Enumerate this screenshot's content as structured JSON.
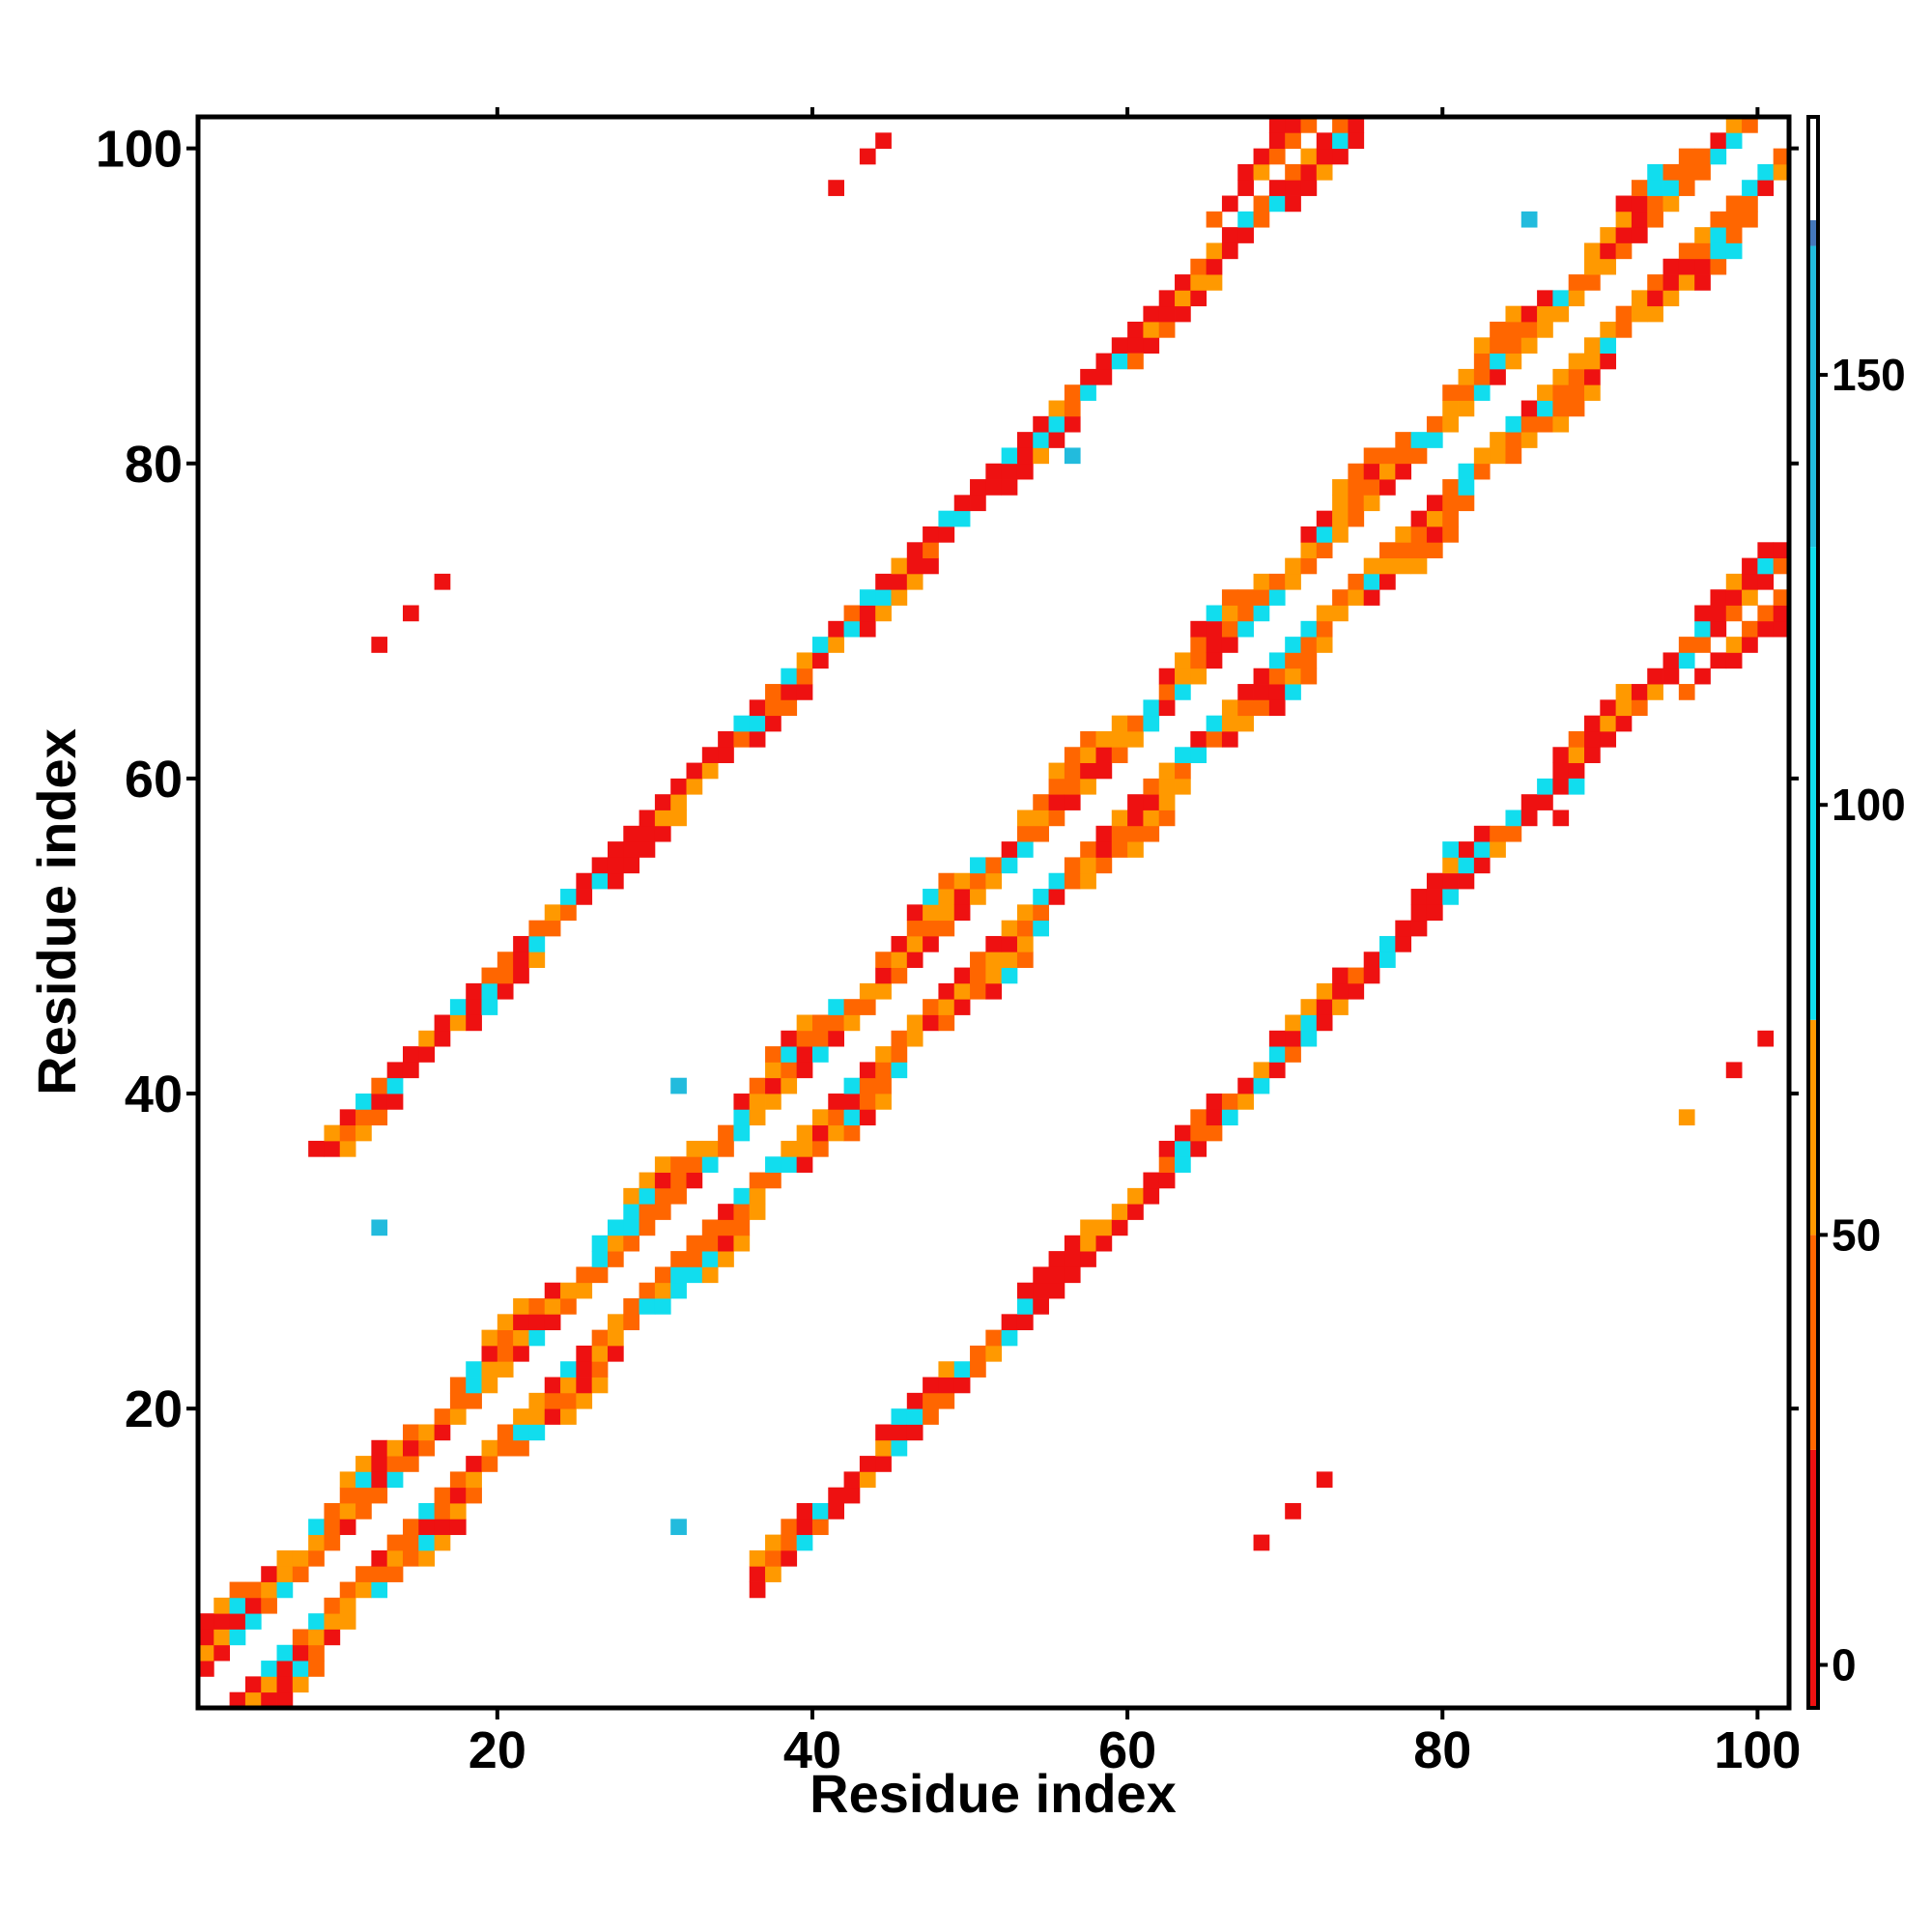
{
  "chart_data": {
    "type": "heatmap",
    "title": "",
    "xlabel": "Residue index",
    "ylabel": "Residue index",
    "xlim": [
      1,
      102
    ],
    "ylim": [
      1,
      102
    ],
    "x_ticks": [
      20,
      40,
      60,
      80,
      100
    ],
    "y_ticks": [
      20,
      40,
      60,
      80,
      100
    ],
    "symmetric": true,
    "colorbar": {
      "ticks": [
        0,
        50,
        100,
        150
      ],
      "range": [
        -5,
        180
      ],
      "bands": [
        {
          "from": -5,
          "to": 25,
          "color": "#ee1111"
        },
        {
          "from": 25,
          "to": 50,
          "color": "#ff6600"
        },
        {
          "from": 50,
          "to": 75,
          "color": "#ff9900"
        },
        {
          "from": 75,
          "to": 130,
          "color": "#11ddee"
        },
        {
          "from": 130,
          "to": 165,
          "color": "#22bbdd"
        },
        {
          "from": 165,
          "to": 168,
          "color": "#4477bb"
        },
        {
          "from": 168,
          "to": 180,
          "color": "#ffffff"
        }
      ]
    },
    "bands": [
      {
        "name": "diagonal",
        "i_start": 1,
        "i_end": 101,
        "offset": 2,
        "width": 3.2,
        "codes": [
          1,
          2,
          2,
          3,
          4,
          2,
          1,
          3,
          2,
          4,
          3
        ]
      },
      {
        "name": "hairpin-1",
        "i_start": 36,
        "i_end": 65,
        "offset": -28,
        "width": 2.6,
        "codes": [
          1,
          1,
          2,
          1,
          3,
          1,
          2,
          4,
          1
        ]
      },
      {
        "name": "hairpin-2",
        "i_start": 65,
        "i_end": 101,
        "offset": -28,
        "width": 2.6,
        "codes": [
          1,
          1,
          2,
          1,
          3,
          2,
          1,
          4,
          1
        ]
      },
      {
        "name": "long-range",
        "i_start": 65,
        "i_end": 76,
        "offset": 30,
        "width": 2.2,
        "codes": [
          1,
          2,
          1,
          3,
          1
        ]
      }
    ],
    "sparse_cells": [
      {
        "i": 41,
        "j": 97,
        "v": 0
      },
      {
        "i": 43,
        "j": 99,
        "v": 0
      },
      {
        "i": 44,
        "j": 100,
        "v": 0
      },
      {
        "i": 12,
        "j": 68,
        "v": 0
      },
      {
        "i": 14,
        "j": 70,
        "v": 0
      },
      {
        "i": 16,
        "j": 72,
        "v": 0
      },
      {
        "i": 100,
        "j": 43,
        "v": 0
      },
      {
        "i": 98,
        "j": 41,
        "v": 0
      },
      {
        "i": 95,
        "j": 38,
        "v": 60
      },
      {
        "i": 68,
        "j": 11,
        "v": 0
      },
      {
        "i": 70,
        "j": 13,
        "v": 0
      },
      {
        "i": 72,
        "j": 15,
        "v": 0
      },
      {
        "i": 31,
        "j": 40,
        "v": 140
      },
      {
        "i": 12,
        "j": 31,
        "v": 140
      },
      {
        "i": 31,
        "j": 12,
        "v": 140
      },
      {
        "i": 88,
        "j": 59,
        "v": 90
      },
      {
        "i": 80,
        "j": 55,
        "v": 90
      },
      {
        "i": 56,
        "j": 80,
        "v": 140
      },
      {
        "i": 87,
        "j": 57,
        "v": 20
      },
      {
        "i": 60,
        "j": 86,
        "v": 40
      },
      {
        "i": 85,
        "j": 95,
        "v": 140
      },
      {
        "i": 32,
        "j": 36,
        "v": 166
      }
    ]
  }
}
